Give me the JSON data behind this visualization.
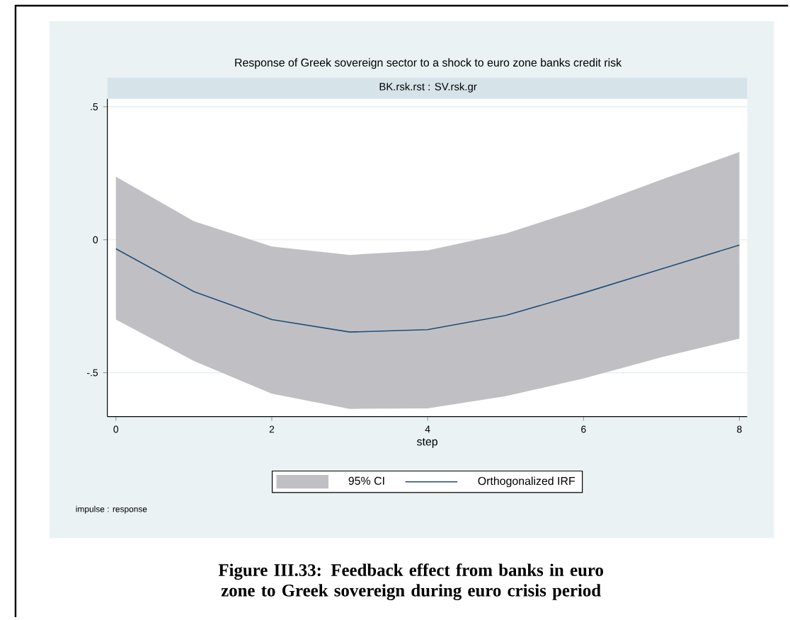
{
  "chart_data": {
    "type": "line",
    "title": "Response of Greek sovereign sector to a shock to euro zone banks credit risk",
    "subtitle": "BK.rsk.rst : SV.rsk.gr",
    "xlabel": "step",
    "x": [
      0,
      1,
      2,
      3,
      4,
      5,
      6,
      7,
      8
    ],
    "series": [
      {
        "name": "Orthogonalized IRF",
        "color": "#1f4e79",
        "values": [
          -0.034,
          -0.195,
          -0.3,
          -0.347,
          -0.338,
          -0.285,
          -0.2,
          -0.11,
          -0.02
        ],
        "lower": [
          -0.3,
          -0.456,
          -0.579,
          -0.636,
          -0.634,
          -0.588,
          -0.522,
          -0.442,
          -0.372
        ],
        "upper": [
          0.237,
          0.07,
          -0.025,
          -0.057,
          -0.04,
          0.023,
          0.118,
          0.226,
          0.33
        ]
      }
    ],
    "xlim": [
      -0.11,
      8.1
    ],
    "ylim": [
      -0.665,
      0.53
    ],
    "xticks": [
      0,
      2,
      4,
      6,
      8
    ],
    "yticks": [
      {
        "value": 0.5,
        "label": ".5"
      },
      0,
      {
        "value": -0.5,
        "label": "-.5"
      }
    ],
    "grid": "y",
    "legend": "bottom",
    "marker": "none",
    "line_style": "solid",
    "annotations": [
      "95% CI",
      "impulse : response",
      "Figure III.33: Feedback effect from banks in euro zone to Greek sovereign during euro crisis period"
    ]
  }
}
